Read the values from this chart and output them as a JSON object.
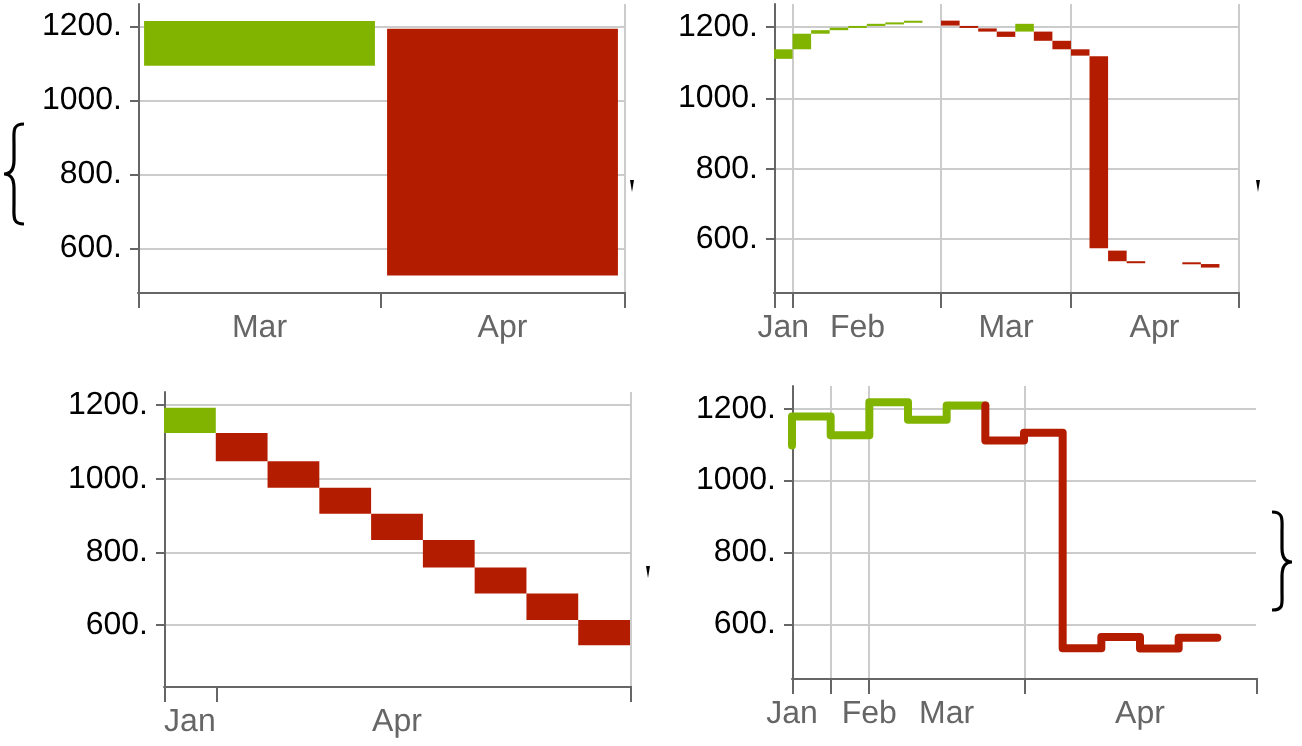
{
  "chart_data": [
    {
      "type": "bar",
      "categories": [
        "Mar",
        "Apr"
      ],
      "base": [
        1093,
        1193
      ],
      "values": [
        121,
        -668
      ],
      "colors": [
        "#80b400",
        "#b41c00"
      ],
      "ylim": [
        480,
        1260
      ],
      "yticks": [
        {
          "value": 600,
          "label": "600."
        },
        {
          "value": 800,
          "label": "800."
        },
        {
          "value": 1000,
          "label": "1000."
        },
        {
          "value": 1200,
          "label": "1200."
        }
      ],
      "grid": true
    },
    {
      "type": "bar",
      "categories": [
        "Jan",
        null,
        null,
        null,
        "Feb",
        null,
        null,
        null,
        null,
        null,
        null,
        null,
        "Mar",
        null,
        null,
        null,
        null,
        null,
        null,
        null,
        "Apr",
        null,
        null,
        null,
        null
      ],
      "base": [
        1110,
        1137,
        1181,
        1191,
        1198,
        1203,
        1209,
        1213,
        null,
        1218,
        1203,
        1196,
        1187,
        1187,
        1187,
        1161,
        1137,
        1117,
        568,
        538,
        null,
        null,
        535,
        530,
        null
      ],
      "values": [
        27,
        44,
        10,
        7,
        5,
        6,
        4,
        5,
        null,
        -14,
        -5,
        -9,
        -15,
        22,
        -26,
        -24,
        -18,
        -542,
        -30,
        -3,
        null,
        null,
        -2,
        -10,
        null
      ],
      "colors": [
        "#80b400",
        "#80b400",
        "#80b400",
        "#80b400",
        "#80b400",
        "#80b400",
        "#80b400",
        "#80b400",
        null,
        "#b41c00",
        "#b41c00",
        "#b41c00",
        "#b41c00",
        "#80b400",
        "#b41c00",
        "#b41c00",
        "#b41c00",
        "#b41c00",
        "#b41c00",
        "#b41c00",
        null,
        null,
        "#b41c00",
        "#b41c00",
        null
      ],
      "ylim": [
        451,
        1265
      ],
      "yticks": [
        {
          "value": 600,
          "label": "600."
        },
        {
          "value": 800,
          "label": "800."
        },
        {
          "value": 1000,
          "label": "1000."
        },
        {
          "value": 1200,
          "label": "1200."
        }
      ],
      "grid": true
    },
    {
      "type": "bar",
      "categories": [
        "Jan",
        null,
        null,
        null,
        "Apr",
        null,
        null,
        null,
        null
      ],
      "base": [
        1124,
        1124,
        1047,
        975,
        904,
        833,
        758,
        687,
        615
      ],
      "values": [
        69,
        -77,
        -72,
        -71,
        -71,
        -75,
        -71,
        -72,
        -69
      ],
      "colors": [
        "#80b400",
        "#b41c00",
        "#b41c00",
        "#b41c00",
        "#b41c00",
        "#b41c00",
        "#b41c00",
        "#b41c00",
        "#b41c00"
      ],
      "ylim": [
        435,
        1236
      ],
      "yticks": [
        {
          "value": 600,
          "label": "600."
        },
        {
          "value": 800,
          "label": "800."
        },
        {
          "value": 1000,
          "label": "1000."
        },
        {
          "value": 1200,
          "label": "1200."
        }
      ],
      "grid": true
    },
    {
      "type": "step",
      "marker": "none",
      "categories": [
        "Jan",
        null,
        "Feb",
        null,
        "Mar",
        null,
        null,
        null,
        null,
        "Apr",
        null,
        null,
        null
      ],
      "series": [
        {
          "color": "#80b400",
          "values": [
            1097,
            1178,
            1126,
            1218,
            1169,
            1209,
            null,
            null,
            null,
            null,
            null,
            null,
            null
          ]
        },
        {
          "color": "#b41c00",
          "values": [
            null,
            null,
            null,
            null,
            null,
            1209,
            1111,
            1133,
            533,
            564,
            532,
            562,
            null
          ]
        }
      ],
      "ylim": [
        450,
        1263
      ],
      "yticks": [
        {
          "value": 600,
          "label": "600."
        },
        {
          "value": 800,
          "label": "800."
        },
        {
          "value": 1000,
          "label": "1000."
        },
        {
          "value": 1200,
          "label": "1200."
        }
      ],
      "grid": true
    }
  ]
}
